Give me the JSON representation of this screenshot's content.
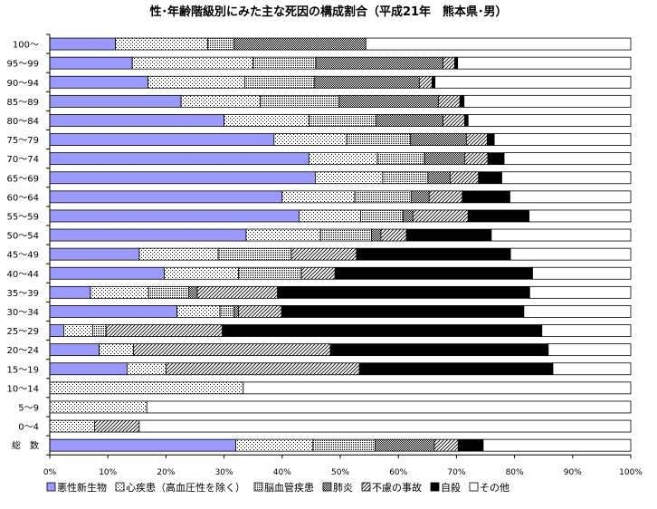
{
  "chart_data": {
    "type": "bar",
    "orientation": "horizontal",
    "stacked": "100%",
    "title": "性･年齢階級別にみた主な死因の構成割合（平成21年　熊本県･男）",
    "categories": [
      "100～",
      "95～99",
      "90～94",
      "85～89",
      "80～84",
      "75～79",
      "70～74",
      "65～69",
      "60～64",
      "55～59",
      "50～54",
      "45～49",
      "40～44",
      "35～39",
      "30～34",
      "25～29",
      "20～24",
      "15～19",
      "10～14",
      "5～9",
      "0～4",
      "総　数"
    ],
    "xlim": [
      0,
      100
    ],
    "xticks": [
      "0%",
      "10%",
      "20%",
      "30%",
      "40%",
      "50%",
      "60%",
      "70%",
      "80%",
      "90%",
      "100%"
    ],
    "grid": false,
    "legend_position": "bottom",
    "series": [
      {
        "name": "悪性新生物",
        "color": "#9999FF",
        "pattern": "solid",
        "values": [
          11.3,
          14.2,
          16.9,
          22.6,
          30.0,
          38.6,
          44.6,
          45.7,
          40.0,
          42.9,
          33.8,
          15.4,
          19.7,
          7.0,
          21.9,
          2.4,
          8.5,
          13.3,
          0,
          0,
          0,
          32.0
        ]
      },
      {
        "name": "心疾患（高血圧性を除く）",
        "color": "#000000",
        "pattern": "dots-sparse",
        "values": [
          15.9,
          20.8,
          16.7,
          13.6,
          14.6,
          12.5,
          11.8,
          11.6,
          12.5,
          10.6,
          12.8,
          13.6,
          12.8,
          10.0,
          7.4,
          5.0,
          5.9,
          6.7,
          33.3,
          16.7,
          7.7,
          13.3
        ]
      },
      {
        "name": "脳血管疾患",
        "color": "#000000",
        "pattern": "dots-dense",
        "values": [
          4.5,
          10.8,
          12.0,
          13.6,
          11.6,
          11.0,
          8.1,
          7.8,
          9.7,
          7.3,
          8.8,
          12.6,
          10.8,
          6.9,
          2.4,
          2.3,
          0,
          0,
          0,
          0,
          0,
          10.7
        ]
      },
      {
        "name": "肺炎",
        "color": "#000000",
        "pattern": "checker",
        "values": [
          22.7,
          21.9,
          18.0,
          17.1,
          11.5,
          9.6,
          6.9,
          3.8,
          3.1,
          1.7,
          1.6,
          0,
          0,
          1.5,
          0.8,
          0,
          0,
          0,
          0,
          0,
          0,
          10.2
        ]
      },
      {
        "name": "不慮の事故",
        "color": "#000000",
        "pattern": "hatch",
        "values": [
          0,
          2.0,
          2.2,
          3.7,
          3.7,
          3.6,
          4.0,
          4.9,
          5.7,
          9.5,
          4.4,
          11.2,
          5.8,
          13.8,
          7.4,
          20.0,
          33.9,
          33.3,
          0,
          0,
          7.7,
          4.1
        ]
      },
      {
        "name": "自殺",
        "color": "#000000",
        "pattern": "solid",
        "values": [
          0,
          0.5,
          0.5,
          0.7,
          0.6,
          1.2,
          2.8,
          4.0,
          8.2,
          10.5,
          14.6,
          26.5,
          34.0,
          43.4,
          41.7,
          55.0,
          37.5,
          33.3,
          0,
          0,
          0,
          4.3
        ]
      },
      {
        "name": "その他",
        "color": "#FFFFFF",
        "pattern": "solid",
        "values": [
          45.6,
          29.8,
          33.7,
          28.7,
          28.0,
          23.5,
          21.8,
          22.2,
          20.8,
          17.5,
          24.0,
          20.7,
          16.9,
          17.4,
          18.4,
          15.3,
          14.2,
          13.4,
          66.7,
          83.3,
          84.6,
          25.4
        ]
      }
    ]
  }
}
